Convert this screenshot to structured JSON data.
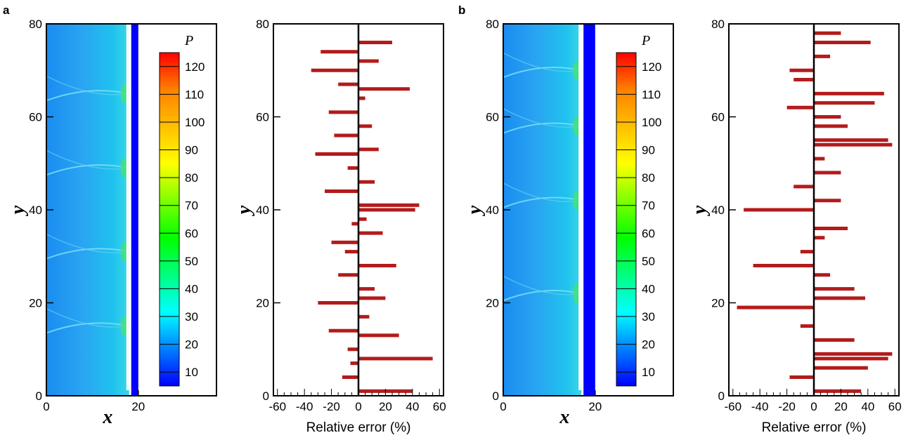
{
  "panels": [
    {
      "label": "a",
      "pressure_field": {
        "x_label": "x",
        "y_label": "y",
        "xticks": [
          "0",
          "20"
        ],
        "yticks": [
          "0",
          "20",
          "40",
          "60",
          "80"
        ],
        "xlim": [
          0,
          37
        ],
        "ylim": [
          0,
          80
        ],
        "shock_front_x": 18,
        "burned_region_end_x": 20,
        "cell_boundaries_y": [
          15,
          31,
          49,
          65
        ],
        "colorbar": {
          "title": "P",
          "ticks": [
            "120",
            "110",
            "100",
            "90",
            "80",
            "70",
            "60",
            "50",
            "40",
            "30",
            "20",
            "10"
          ],
          "range": [
            5,
            125
          ],
          "colors": [
            "#0000ff",
            "#0080ff",
            "#00ffff",
            "#00ff80",
            "#00ff00",
            "#80ff00",
            "#ffff00",
            "#ffc000",
            "#ff8000",
            "#ff0000"
          ]
        }
      },
      "error_profile": {
        "x_label": "Relative error (%)",
        "y_label": "y",
        "xticks": [
          "-60",
          "-40",
          "-20",
          "0",
          "20",
          "40",
          "60"
        ],
        "yticks": [
          "0",
          "20",
          "40",
          "60",
          "80"
        ]
      }
    },
    {
      "label": "b",
      "pressure_field": {
        "x_label": "x",
        "y_label": "y",
        "xticks": [
          "0",
          "20"
        ],
        "yticks": [
          "0",
          "20",
          "40",
          "60",
          "80"
        ],
        "xlim": [
          0,
          37
        ],
        "ylim": [
          0,
          80
        ],
        "shock_front_x": 17,
        "burned_region_end_x": 20,
        "cell_boundaries_y": [
          22,
          42,
          58,
          70
        ],
        "colorbar": {
          "title": "P",
          "ticks": [
            "120",
            "110",
            "100",
            "90",
            "80",
            "70",
            "60",
            "50",
            "40",
            "30",
            "20",
            "10"
          ],
          "range": [
            5,
            125
          ],
          "colors": [
            "#0000ff",
            "#0080ff",
            "#00ffff",
            "#00ff80",
            "#00ff00",
            "#80ff00",
            "#ffff00",
            "#ffc000",
            "#ff8000",
            "#ff0000"
          ]
        }
      },
      "error_profile": {
        "x_label": "Relative error (%)",
        "y_label": "y",
        "xticks": [
          "-60",
          "-40",
          "-20",
          "0",
          "20",
          "40",
          "60"
        ],
        "yticks": [
          "0",
          "20",
          "40",
          "60",
          "80"
        ]
      }
    }
  ],
  "chart_data": [
    {
      "type": "bar",
      "orientation": "horizontal",
      "panel": "a",
      "xlabel": "Relative error (%)",
      "ylabel": "y",
      "xlim": [
        -63,
        63
      ],
      "ylim": [
        0,
        80
      ],
      "bar_color": "#b31b1b",
      "y": [
        1,
        4,
        7,
        8,
        10,
        13,
        14,
        17,
        20,
        21,
        23,
        26,
        28,
        31,
        33,
        35,
        37,
        38,
        40,
        41,
        44,
        46,
        49,
        52,
        53,
        56,
        58,
        61,
        64,
        66,
        67,
        70,
        72,
        74,
        76
      ],
      "values": [
        40,
        -12,
        -6,
        55,
        -8,
        30,
        -22,
        8,
        -30,
        20,
        12,
        -15,
        28,
        -10,
        -20,
        18,
        -5,
        6,
        42,
        45,
        -25,
        12,
        -8,
        -32,
        15,
        -18,
        10,
        -22,
        5,
        38,
        -15,
        -35,
        15,
        -28,
        25
      ]
    },
    {
      "type": "bar",
      "orientation": "horizontal",
      "panel": "b",
      "xlabel": "Relative error (%)",
      "ylabel": "y",
      "xlim": [
        -63,
        63
      ],
      "ylim": [
        0,
        80
      ],
      "bar_color": "#b31b1b",
      "y": [
        1,
        4,
        6,
        8,
        9,
        12,
        15,
        19,
        21,
        23,
        26,
        28,
        31,
        34,
        36,
        40,
        42,
        45,
        48,
        51,
        54,
        55,
        58,
        60,
        62,
        63,
        65,
        68,
        70,
        73,
        76,
        78
      ],
      "values": [
        35,
        -18,
        40,
        55,
        58,
        30,
        -10,
        -57,
        38,
        30,
        12,
        -45,
        -10,
        8,
        25,
        -52,
        20,
        -15,
        20,
        8,
        58,
        55,
        25,
        20,
        -20,
        45,
        52,
        -15,
        -18,
        12,
        42,
        20
      ]
    }
  ]
}
